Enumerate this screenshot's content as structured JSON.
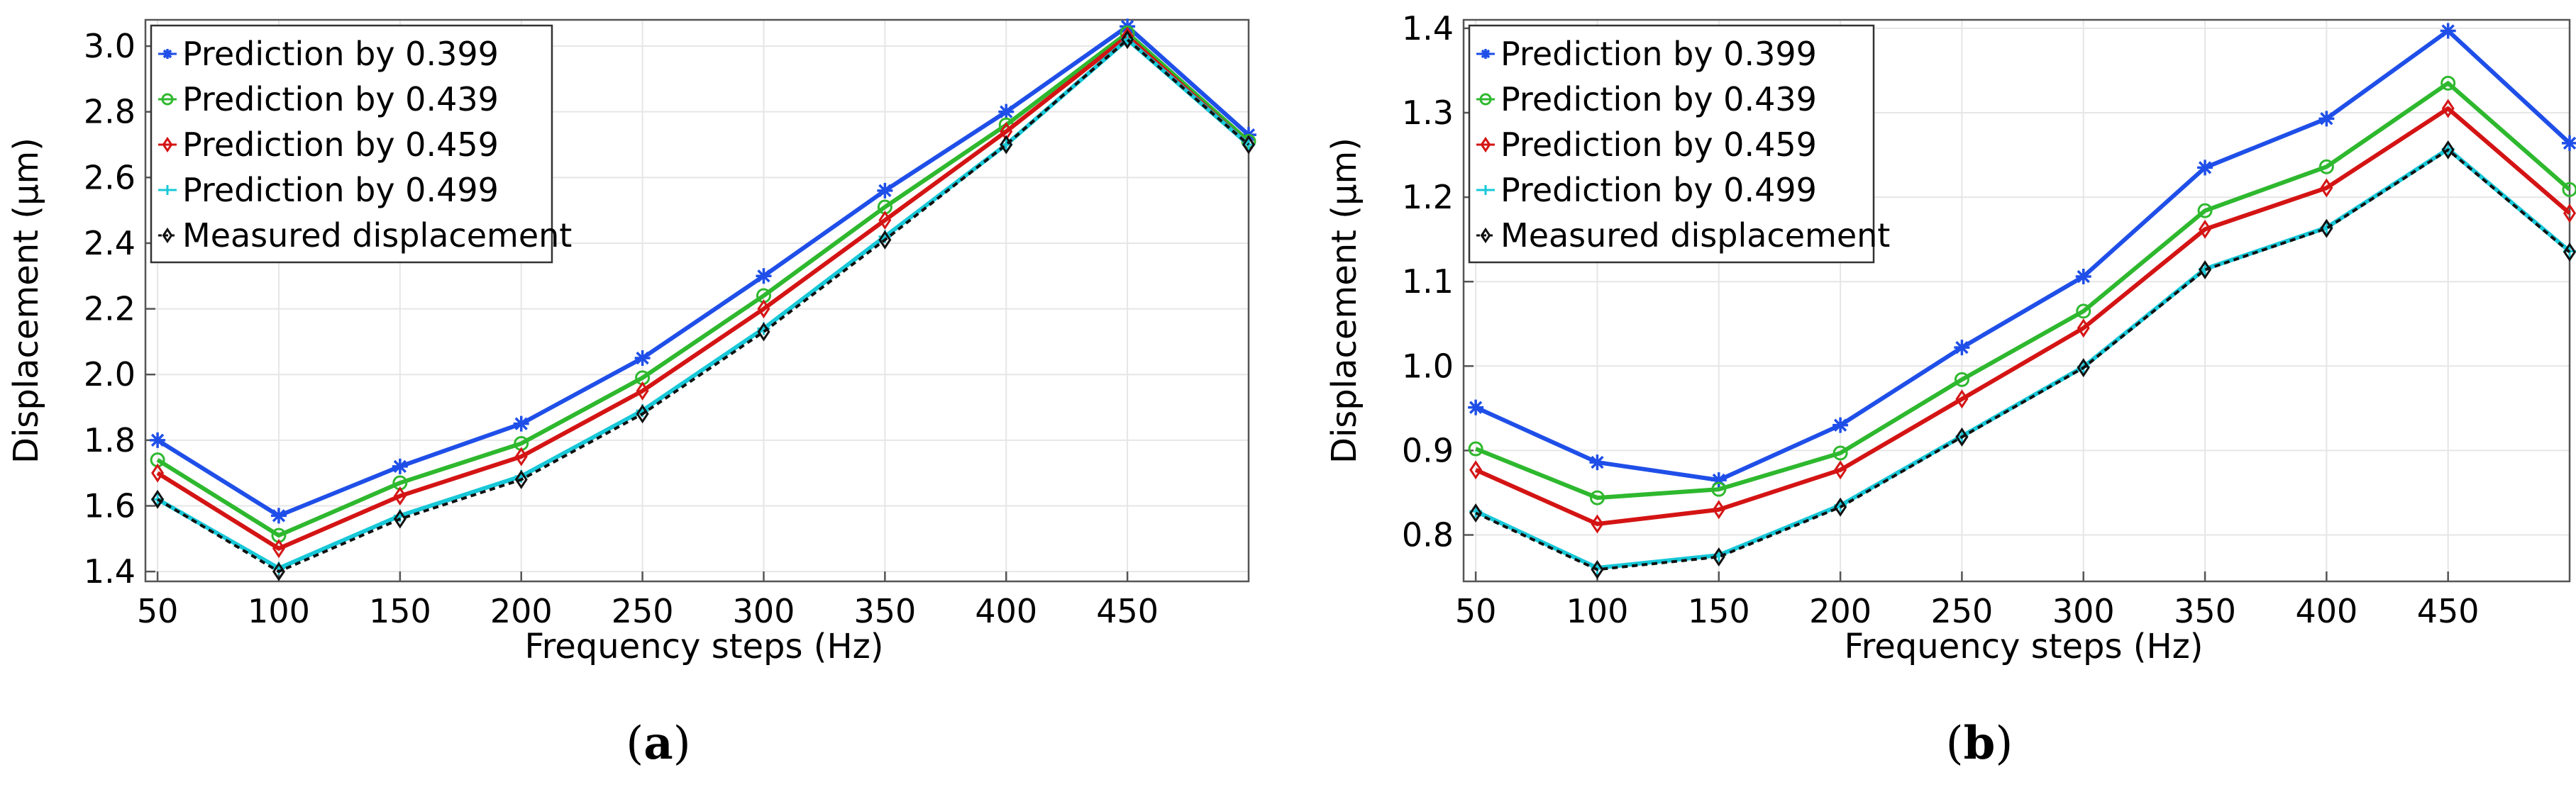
{
  "chart_data": [
    {
      "type": "line",
      "panel_label": "a",
      "xlabel": "Frequency steps (Hz)",
      "ylabel": "Displacement (µm)",
      "x": [
        50,
        100,
        150,
        200,
        250,
        300,
        350,
        400,
        450,
        500
      ],
      "xticks": [
        50,
        100,
        150,
        200,
        250,
        300,
        350,
        400,
        450
      ],
      "xlim": [
        45,
        500
      ],
      "ylim": [
        1.37,
        3.08
      ],
      "yticks": [
        "1.4",
        "1.6",
        "1.8",
        "2.0",
        "2.2",
        "2.4",
        "2.6",
        "2.8",
        "3.0"
      ],
      "grid": true,
      "legend_position": "top-left",
      "series": [
        {
          "name": "Prediction by 0.399",
          "color": "#1f4fe8",
          "marker": "asterisk",
          "values": [
            1.8,
            1.57,
            1.72,
            1.85,
            2.05,
            2.3,
            2.56,
            2.8,
            3.06,
            2.73
          ]
        },
        {
          "name": "Prediction by 0.439",
          "color": "#2eb82e",
          "marker": "circle",
          "values": [
            1.74,
            1.51,
            1.67,
            1.79,
            1.99,
            2.24,
            2.51,
            2.76,
            3.04,
            2.71
          ]
        },
        {
          "name": "Prediction by 0.459",
          "color": "#d41414",
          "marker": "diamond",
          "values": [
            1.7,
            1.47,
            1.63,
            1.75,
            1.95,
            2.2,
            2.47,
            2.74,
            3.03,
            2.7
          ]
        },
        {
          "name": "Prediction by 0.499",
          "color": "#18c8d8",
          "marker": "plus",
          "values": [
            1.62,
            1.41,
            1.57,
            1.69,
            1.89,
            2.14,
            2.42,
            2.7,
            3.02,
            2.7
          ]
        },
        {
          "name": "Measured displacement",
          "color": "#111111",
          "marker": "diamond",
          "dashed": true,
          "values": [
            1.62,
            1.4,
            1.56,
            1.68,
            1.88,
            2.13,
            2.41,
            2.7,
            3.02,
            2.7
          ]
        }
      ]
    },
    {
      "type": "line",
      "panel_label": "b",
      "xlabel": "Frequency steps (Hz)",
      "ylabel": "Displacement (µm)",
      "x": [
        50,
        100,
        150,
        200,
        250,
        300,
        350,
        400,
        450,
        500
      ],
      "xticks": [
        50,
        100,
        150,
        200,
        250,
        300,
        350,
        400,
        450
      ],
      "xlim": [
        45,
        500
      ],
      "ylim": [
        0.745,
        1.41
      ],
      "yticks": [
        "0.8",
        "0.9",
        "1.0",
        "1.1",
        "1.2",
        "1.3",
        "1.4"
      ],
      "grid": true,
      "legend_position": "top-left",
      "series": [
        {
          "name": "Prediction by 0.399",
          "color": "#1f4fe8",
          "marker": "asterisk",
          "values": [
            0.951,
            0.886,
            0.865,
            0.93,
            1.022,
            1.106,
            1.235,
            1.293,
            1.397,
            1.264
          ]
        },
        {
          "name": "Prediction by 0.439",
          "color": "#2eb82e",
          "marker": "circle",
          "values": [
            0.902,
            0.844,
            0.854,
            0.897,
            0.984,
            1.065,
            1.184,
            1.236,
            1.335,
            1.209
          ]
        },
        {
          "name": "Prediction by 0.459",
          "color": "#d41414",
          "marker": "diamond",
          "values": [
            0.877,
            0.813,
            0.83,
            0.877,
            0.961,
            1.045,
            1.162,
            1.211,
            1.305,
            1.181
          ]
        },
        {
          "name": "Prediction by 0.499",
          "color": "#18c8d8",
          "marker": "plus",
          "values": [
            0.828,
            0.761,
            0.776,
            0.835,
            0.917,
            0.999,
            1.115,
            1.164,
            1.257,
            1.136
          ]
        },
        {
          "name": "Measured displacement",
          "color": "#111111",
          "marker": "diamond",
          "dashed": true,
          "values": [
            0.826,
            0.759,
            0.774,
            0.833,
            0.916,
            0.998,
            1.114,
            1.163,
            1.256,
            1.135
          ]
        }
      ]
    }
  ]
}
